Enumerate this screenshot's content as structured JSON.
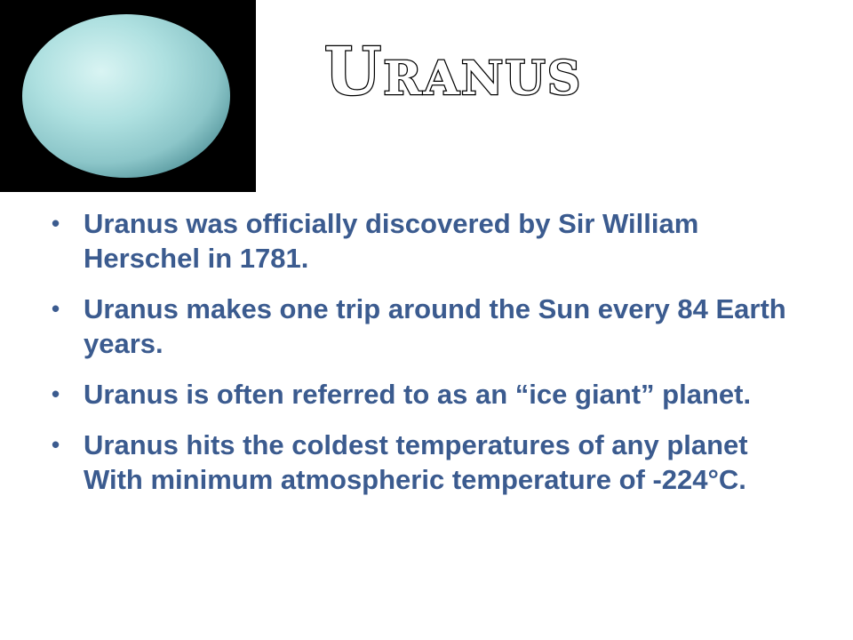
{
  "slide": {
    "title": "Uranus",
    "image": {
      "icon": "uranus-planet-photo",
      "background_color": "#000000",
      "planet_color": "#a8dfe0"
    },
    "bullets": [
      "Uranus was officially discovered by Sir William Herschel in 1781.",
      "Uranus makes one trip around the Sun every 84 Earth years.",
      "Uranus is often referred to as an “ice giant” planet.",
      "Uranus hits the coldest temperatures of any planet With minimum atmospheric temperature of -224°C."
    ],
    "bullet_symbol": "•",
    "text_color": "#3b5b8f"
  }
}
